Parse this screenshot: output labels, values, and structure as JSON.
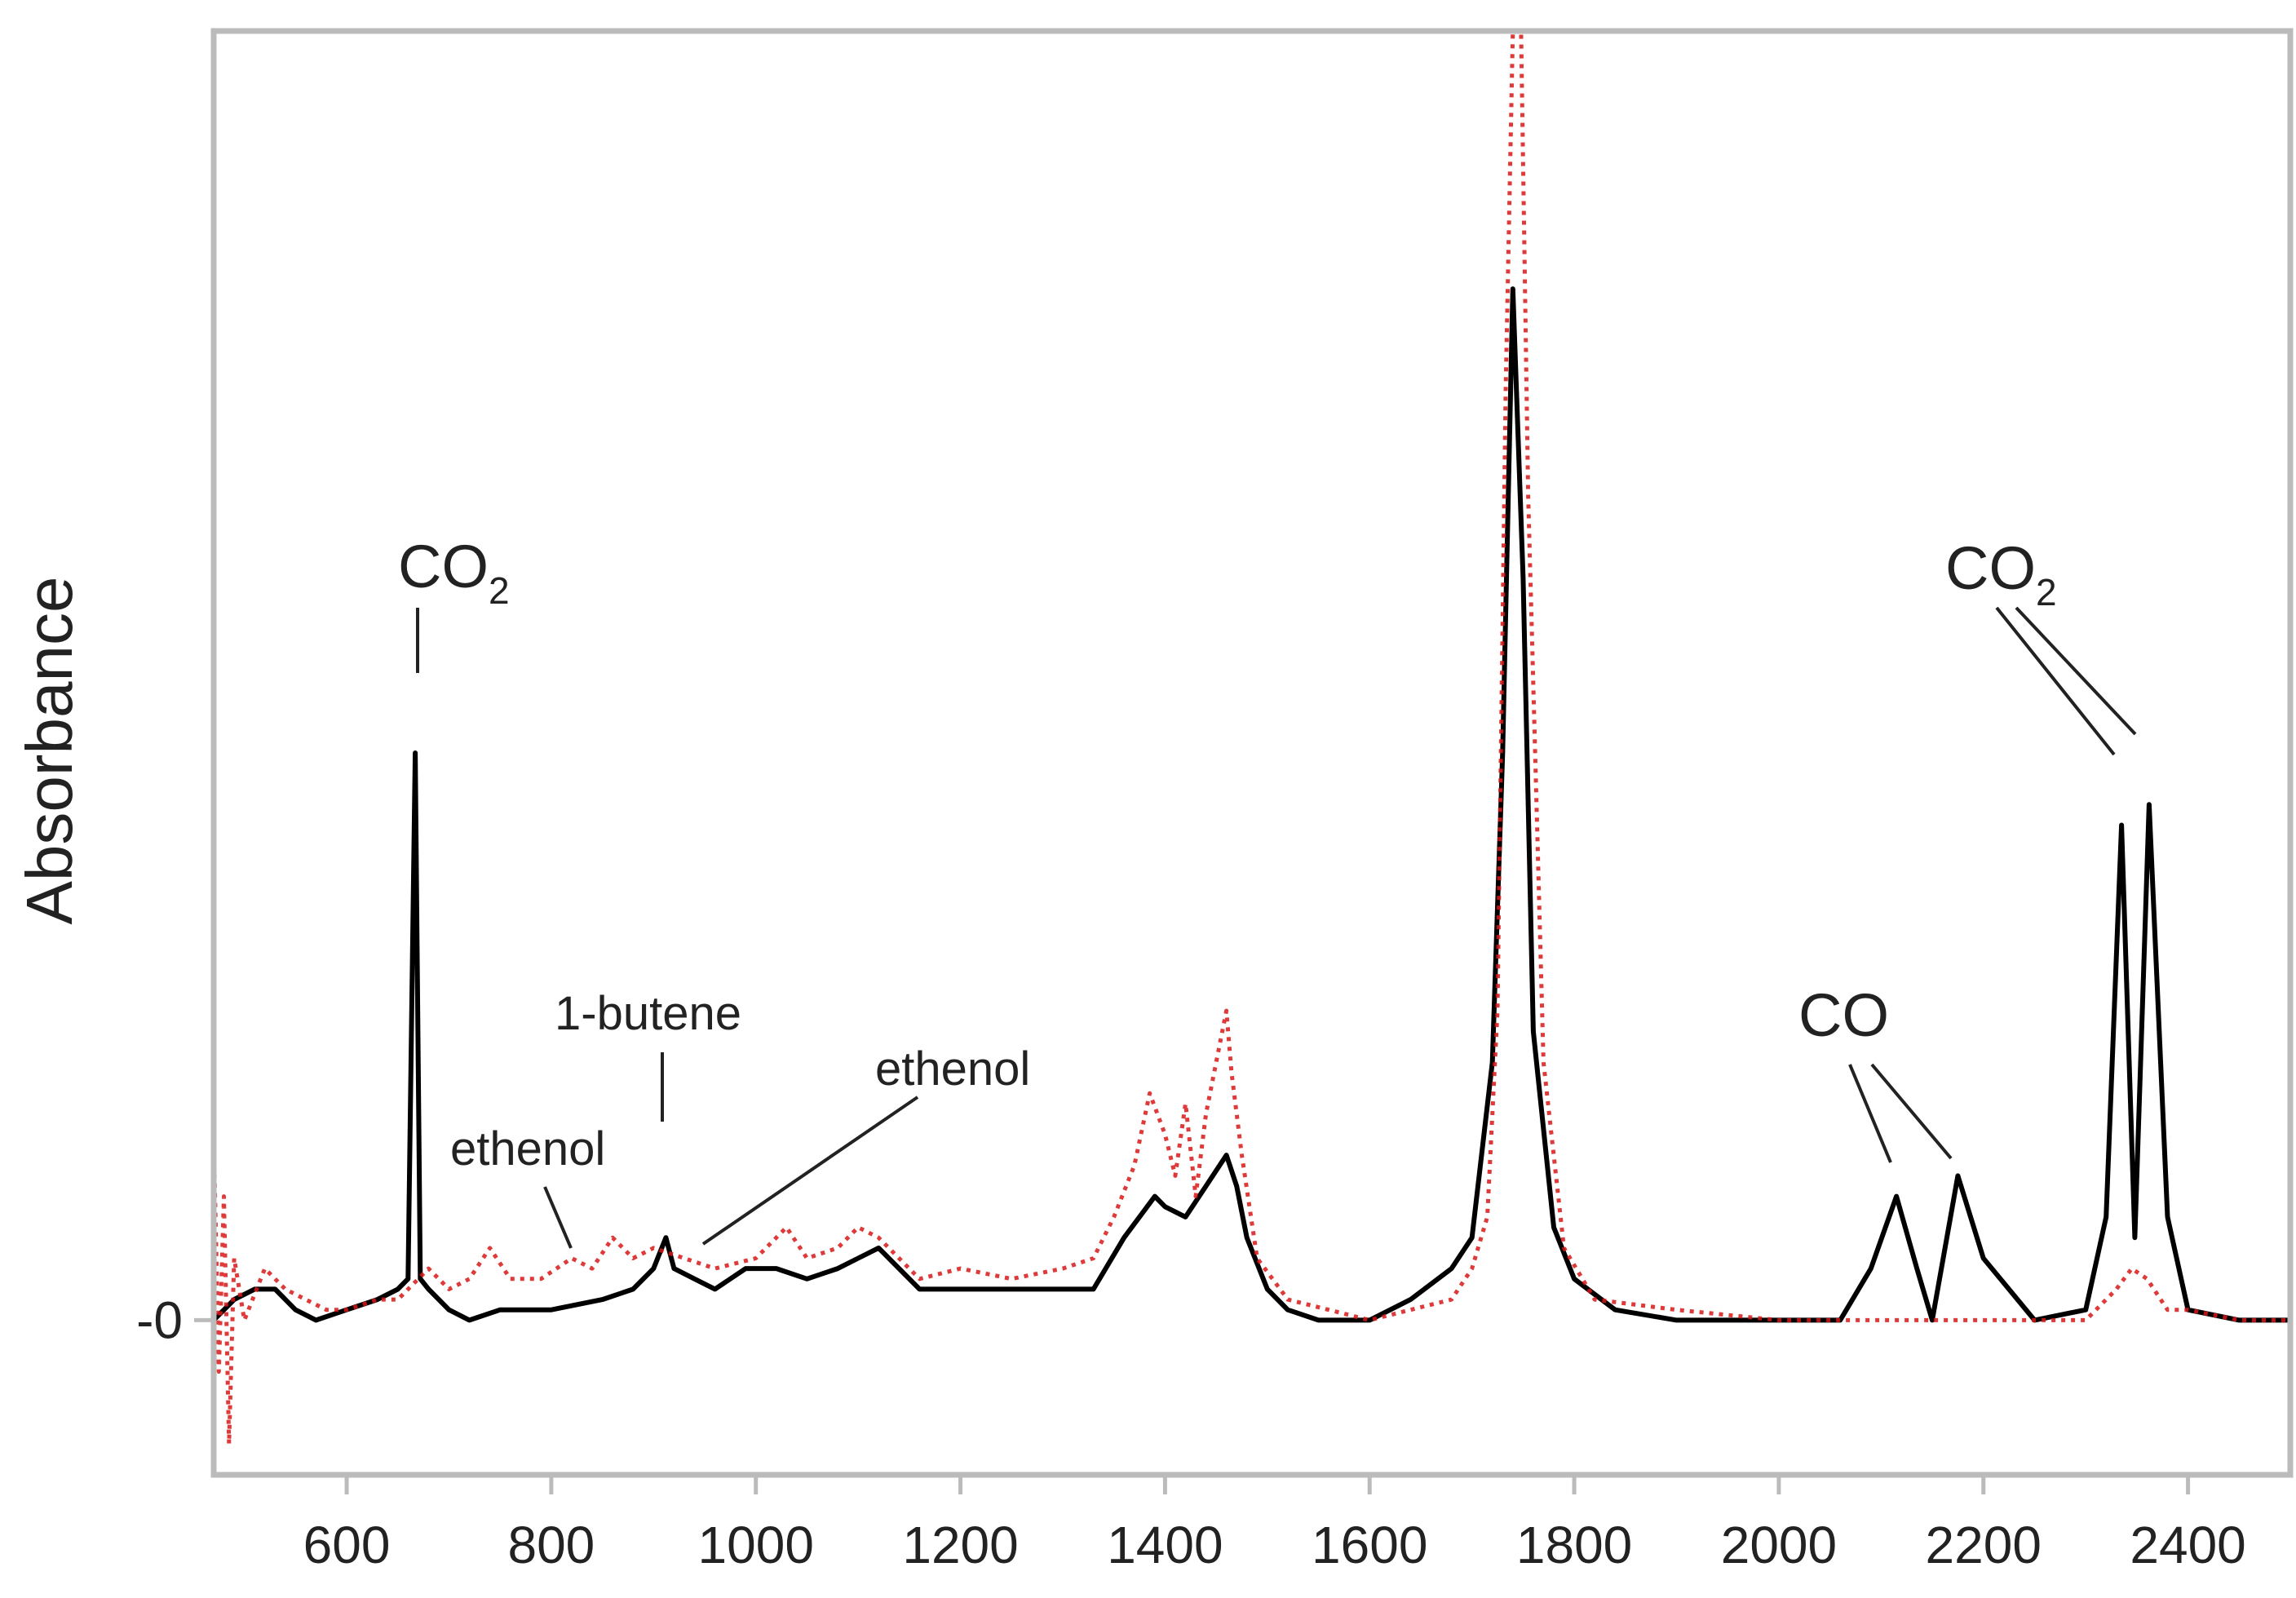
{
  "chart_data": {
    "type": "line",
    "title": "",
    "xlabel": "",
    "ylabel": "Absorbance",
    "xlim": [
      470,
      2500
    ],
    "ylim": [
      -0.15,
      1.25
    ],
    "x_ticks": [
      600,
      800,
      1000,
      1200,
      1400,
      1600,
      1800,
      2000,
      2200,
      2400
    ],
    "y_ticks": [
      {
        "value": 0,
        "label": "-0"
      }
    ],
    "grid": false,
    "legend": "none",
    "colors": {
      "black_series": "#000000",
      "red_series": "#d81818",
      "frame": "#bbbbbb"
    },
    "series": [
      {
        "color": "#000000",
        "style": "solid",
        "x": [
          470,
          490,
          510,
          530,
          550,
          570,
          600,
          630,
          650,
          660,
          667,
          672,
          680,
          700,
          720,
          750,
          800,
          850,
          880,
          900,
          912,
          920,
          940,
          960,
          990,
          1020,
          1050,
          1080,
          1100,
          1120,
          1140,
          1160,
          1200,
          1250,
          1300,
          1330,
          1360,
          1390,
          1400,
          1420,
          1440,
          1460,
          1470,
          1480,
          1500,
          1520,
          1550,
          1580,
          1600,
          1640,
          1680,
          1700,
          1720,
          1730,
          1740,
          1750,
          1760,
          1780,
          1800,
          1840,
          1900,
          2000,
          2060,
          2090,
          2115,
          2135,
          2150,
          2175,
          2200,
          2250,
          2300,
          2320,
          2335,
          2348,
          2362,
          2380,
          2400,
          2450,
          2500
        ],
        "y": [
          0.0,
          0.02,
          0.03,
          0.03,
          0.01,
          0.0,
          0.01,
          0.02,
          0.03,
          0.04,
          0.55,
          0.04,
          0.03,
          0.01,
          0.0,
          0.01,
          0.01,
          0.02,
          0.03,
          0.05,
          0.08,
          0.05,
          0.04,
          0.03,
          0.05,
          0.05,
          0.04,
          0.05,
          0.06,
          0.07,
          0.05,
          0.03,
          0.03,
          0.03,
          0.03,
          0.03,
          0.08,
          0.12,
          0.11,
          0.1,
          0.13,
          0.16,
          0.13,
          0.08,
          0.03,
          0.01,
          0.0,
          0.0,
          0.0,
          0.02,
          0.05,
          0.08,
          0.25,
          0.55,
          1.0,
          0.72,
          0.28,
          0.09,
          0.04,
          0.01,
          0.0,
          0.0,
          0.0,
          0.05,
          0.12,
          0.05,
          0.0,
          0.14,
          0.06,
          0.0,
          0.01,
          0.1,
          0.48,
          0.08,
          0.5,
          0.1,
          0.01,
          0.0,
          0.0
        ]
      },
      {
        "color": "#d81818",
        "style": "dotted",
        "x": [
          470,
          475,
          480,
          485,
          490,
          500,
          520,
          540,
          560,
          580,
          600,
          630,
          650,
          680,
          700,
          720,
          740,
          760,
          790,
          820,
          840,
          860,
          880,
          900,
          930,
          960,
          1000,
          1030,
          1050,
          1080,
          1100,
          1120,
          1140,
          1160,
          1200,
          1250,
          1300,
          1330,
          1350,
          1370,
          1385,
          1400,
          1410,
          1420,
          1430,
          1440,
          1450,
          1460,
          1465,
          1475,
          1490,
          1520,
          1560,
          1600,
          1640,
          1680,
          1700,
          1715,
          1725,
          1733,
          1740,
          1748,
          1755,
          1770,
          1790,
          1820,
          1900,
          2000,
          2100,
          2200,
          2300,
          2330,
          2345,
          2360,
          2380,
          2400,
          2450,
          2500
        ],
        "y": [
          0.18,
          -0.05,
          0.12,
          -0.12,
          0.06,
          0.0,
          0.05,
          0.03,
          0.02,
          0.01,
          0.01,
          0.02,
          0.02,
          0.05,
          0.03,
          0.04,
          0.07,
          0.04,
          0.04,
          0.06,
          0.05,
          0.08,
          0.06,
          0.07,
          0.06,
          0.05,
          0.06,
          0.09,
          0.06,
          0.07,
          0.09,
          0.08,
          0.06,
          0.04,
          0.05,
          0.04,
          0.05,
          0.06,
          0.1,
          0.15,
          0.22,
          0.18,
          0.14,
          0.21,
          0.12,
          0.2,
          0.25,
          0.3,
          0.24,
          0.16,
          0.06,
          0.02,
          0.01,
          0.0,
          0.01,
          0.02,
          0.05,
          0.1,
          0.3,
          0.9,
          1.4,
          1.4,
          0.8,
          0.25,
          0.07,
          0.02,
          0.01,
          0.0,
          0.0,
          0.0,
          0.0,
          0.03,
          0.05,
          0.04,
          0.01,
          0.01,
          0.0,
          0.0
        ]
      }
    ],
    "annotations": [
      {
        "label": "CO",
        "sub": "2",
        "x": 667
      },
      {
        "label": "ethenol",
        "x": 820
      },
      {
        "label": "1-butene",
        "x": 912
      },
      {
        "label": "ethenol",
        "x": 940
      },
      {
        "label": "CO",
        "x": 2120
      },
      {
        "label": "CO",
        "sub": "2",
        "x": 2345
      }
    ]
  }
}
